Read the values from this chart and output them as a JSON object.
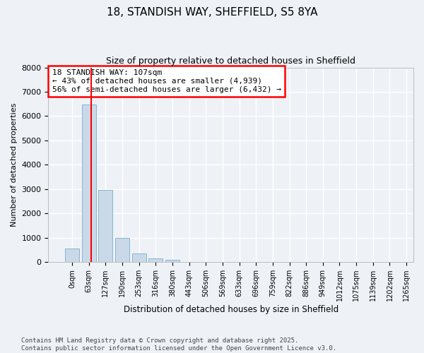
{
  "title_line1": "18, STANDISH WAY, SHEFFIELD, S5 8YA",
  "title_line2": "Size of property relative to detached houses in Sheffield",
  "xlabel": "Distribution of detached houses by size in Sheffield",
  "ylabel": "Number of detached properties",
  "bins": [
    "0sqm",
    "63sqm",
    "127sqm",
    "190sqm",
    "253sqm",
    "316sqm",
    "380sqm",
    "443sqm",
    "506sqm",
    "569sqm",
    "633sqm",
    "696sqm",
    "759sqm",
    "822sqm",
    "886sqm",
    "949sqm",
    "1012sqm",
    "1075sqm",
    "1139sqm",
    "1202sqm",
    "1265sqm"
  ],
  "bar_heights": [
    570,
    6480,
    2980,
    990,
    360,
    155,
    90,
    0,
    0,
    0,
    0,
    0,
    0,
    0,
    0,
    0,
    0,
    0,
    0,
    0
  ],
  "bar_color": "#c9d9e8",
  "bar_edgecolor": "#8ab4cc",
  "vline_color": "red",
  "ylim": [
    0,
    8000
  ],
  "yticks": [
    0,
    1000,
    2000,
    3000,
    4000,
    5000,
    6000,
    7000,
    8000
  ],
  "annotation_title": "18 STANDISH WAY: 107sqm",
  "annotation_line2": "← 43% of detached houses are smaller (4,939)",
  "annotation_line3": "56% of semi-detached houses are larger (6,432) →",
  "annotation_box_color": "red",
  "footnote_line1": "Contains HM Land Registry data © Crown copyright and database right 2025.",
  "footnote_line2": "Contains public sector information licensed under the Open Government Licence v3.0.",
  "background_color": "#eef2f7",
  "plot_bg_color": "#eef2f7",
  "grid_color": "white"
}
